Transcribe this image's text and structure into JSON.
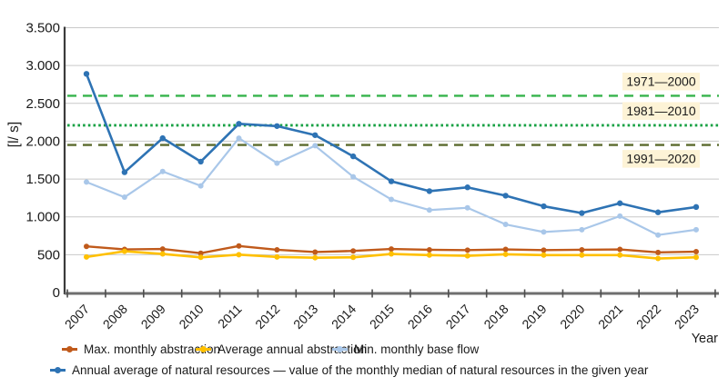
{
  "chart_data": {
    "type": "line",
    "title": "",
    "xlabel": "Year",
    "ylabel": "[l/ s]",
    "x_categories": [
      "2007",
      "2008",
      "2009",
      "2010",
      "2011",
      "2012",
      "2013",
      "2014",
      "2015",
      "2016",
      "2017",
      "2018",
      "2019",
      "2020",
      "2021",
      "2022",
      "2023"
    ],
    "ylim": [
      0,
      3500
    ],
    "y_tick_step": 500,
    "y_tick_labels": [
      "0",
      "500",
      "1.000",
      "1.500",
      "2.000",
      "2.500",
      "3.000",
      "3.500"
    ],
    "grid": true,
    "legend_position": "bottom",
    "series": [
      {
        "id": "max-monthly-abstraction",
        "name": "Max. monthly abstraction",
        "color": "#c05a1b",
        "values": [
          610,
          570,
          575,
          520,
          615,
          565,
          535,
          550,
          575,
          565,
          560,
          570,
          560,
          565,
          570,
          530,
          540
        ]
      },
      {
        "id": "average-annual-abstraction",
        "name": "Average annual abstraction",
        "color": "#ffc000",
        "values": [
          470,
          545,
          510,
          465,
          500,
          470,
          460,
          465,
          510,
          495,
          485,
          505,
          495,
          495,
          495,
          450,
          465
        ]
      },
      {
        "id": "min-monthly-base-flow",
        "name": "Min. monthly base flow",
        "color": "#a9c7e9",
        "values": [
          1460,
          1260,
          1600,
          1410,
          2040,
          1710,
          1940,
          1530,
          1230,
          1090,
          1120,
          900,
          800,
          830,
          1010,
          760,
          830
        ]
      },
      {
        "id": "annual-average-of-natural-resources",
        "name": "Annual average of natural resources — value of the monthly median of natural resources in the given year",
        "color": "#2e73b4",
        "values": [
          2890,
          1590,
          2040,
          1730,
          2230,
          2200,
          2080,
          1800,
          1470,
          1340,
          1390,
          1280,
          1140,
          1050,
          1180,
          1060,
          1130
        ]
      }
    ],
    "reference_lines": [
      {
        "label": "1971—2000",
        "value": 2600,
        "color": "#36b44c",
        "style": "dashed",
        "label_side": "above"
      },
      {
        "label": "1981—2010",
        "value": 2210,
        "color": "#17a144",
        "style": "dotted",
        "label_side": "above"
      },
      {
        "label": "1991—2020",
        "value": 1950,
        "color": "#5c6b2e",
        "style": "dashed",
        "label_side": "below"
      }
    ],
    "reference_label_bg": "#fdf3d6",
    "axis_colors": {
      "y_axis": "#3b3b3b",
      "x_axis": "#6e6e6e",
      "gridline": "#c9c9c9",
      "text": "#1a1a1a"
    }
  }
}
